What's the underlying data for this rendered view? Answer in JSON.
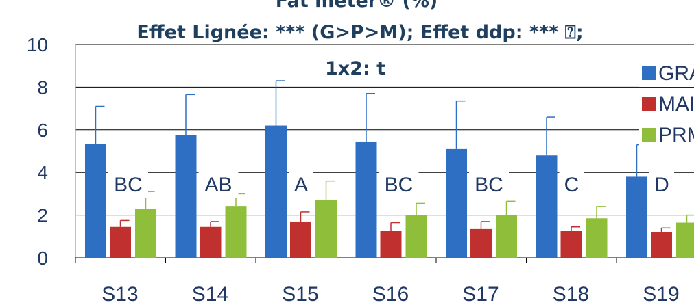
{
  "chart_data": {
    "type": "bar",
    "title_lines": [
      "Fat meter® (%)",
      "Effet Lignée: *** (G>P>M); Effet ddp: *** ⍰;",
      "1x2: t"
    ],
    "categories": [
      "S13",
      "S14",
      "S15",
      "S16",
      "S17",
      "S18",
      "S19"
    ],
    "series": [
      {
        "name": "GRA",
        "color": "#2e6fc4",
        "values": [
          5.35,
          5.75,
          6.2,
          5.45,
          5.1,
          4.8,
          3.8
        ],
        "errors": [
          1.75,
          1.9,
          2.1,
          2.25,
          2.25,
          1.8,
          1.5
        ]
      },
      {
        "name": "MAI",
        "color": "#c0302f",
        "values": [
          1.45,
          1.45,
          1.7,
          1.25,
          1.35,
          1.25,
          1.2
        ],
        "errors": [
          0.3,
          0.25,
          0.45,
          0.4,
          0.35,
          0.2,
          0.2
        ]
      },
      {
        "name": "PRM",
        "color": "#8fbf3a",
        "values": [
          2.3,
          2.4,
          2.7,
          2.0,
          2.0,
          1.85,
          1.65
        ],
        "errors": [
          0.8,
          0.6,
          0.9,
          0.55,
          0.65,
          0.55,
          0.35
        ]
      }
    ],
    "annotations": [
      "BC",
      "AB",
      "A",
      "BC",
      "BC",
      "C",
      "D"
    ],
    "ylim": [
      0,
      10
    ],
    "yticks": [
      0,
      2,
      4,
      6,
      8,
      10
    ],
    "legend_position": "top-right",
    "grid": true
  }
}
